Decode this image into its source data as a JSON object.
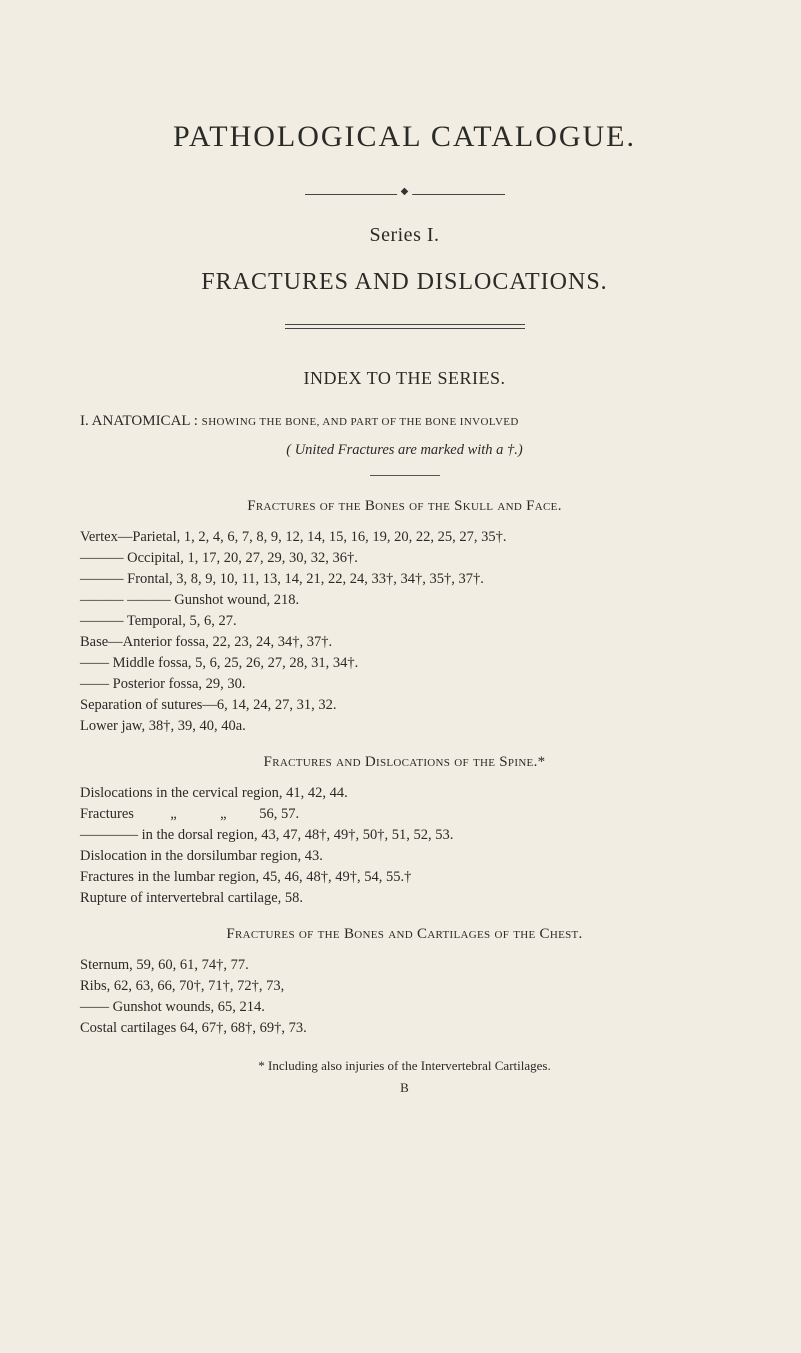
{
  "title": "PATHOLOGICAL CATALOGUE.",
  "series": "Series I.",
  "subtitle": "FRACTURES AND DISLOCATIONS.",
  "index_heading": "INDEX TO THE SERIES.",
  "section_i": {
    "label": "I. ANATOMICAL :",
    "smallcaps": "showing the bone, and part of the bone involved",
    "united": "( United Fractures are marked with a †.)"
  },
  "caption_bones_skull": "Fractures of the Bones of the Skull and Face.",
  "bones_skull_lines": [
    "Vertex—Parietal, 1, 2, 4, 6, 7, 8, 9, 12, 14, 15, 16, 19, 20, 22, 25, 27, 35†.",
    "———   Occipital, 1, 17, 20, 27, 29, 30, 32, 36†.",
    "———   Frontal, 3, 8, 9, 10, 11, 13, 14, 21, 22, 24, 33†, 34†, 35†, 37†.",
    "———   ———  Gunshot wound, 218.",
    "———   Temporal, 5, 6, 27.",
    "Base—Anterior fossa, 22, 23, 24, 34†, 37†.",
    "——  Middle fossa, 5, 6, 25, 26, 27, 28, 31, 34†.",
    "——  Posterior fossa, 29, 30.",
    "Separation of sutures—6, 14, 24, 27, 31, 32.",
    "Lower jaw, 38†, 39, 40, 40a."
  ],
  "caption_spine": "Fractures and Dislocations of the Spine.*",
  "spine_lines": [
    "Dislocations in the cervical region, 41, 42, 44.",
    "Fractures          „            „         56, 57.",
    "———— in the dorsal region, 43, 47, 48†, 49†, 50†, 51, 52, 53.",
    "Dislocation in the dorsilumbar region, 43.",
    "Fractures in the lumbar region, 45, 46, 48†, 49†, 54, 55.†",
    "Rupture of intervertebral cartilage, 58."
  ],
  "caption_chest": "Fractures of the Bones and Cartilages of the Chest.",
  "chest_lines": [
    "Sternum, 59, 60, 61, 74†, 77.",
    "Ribs, 62, 63, 66, 70†, 71†, 72†, 73,",
    "—— Gunshot wounds, 65, 214.",
    "Costal cartilages 64, 67†, 68†, 69†, 73."
  ],
  "footnote": "* Including also injuries of the Intervertebral Cartilages.",
  "signature": "B"
}
